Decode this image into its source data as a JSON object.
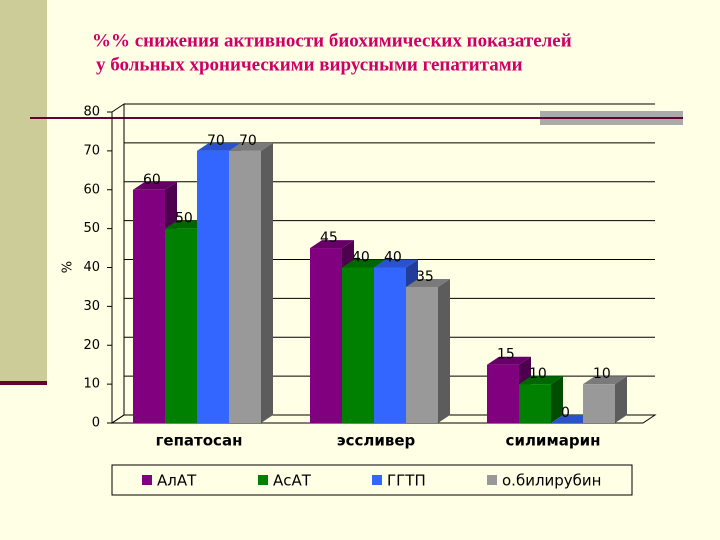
{
  "chart_data": {
    "type": "bar",
    "title": [
      "%% снижения активности биохимических показателей",
      "у больных хроническими вирусными гепатитами"
    ],
    "y_label": "%",
    "categories": [
      "гепатосан",
      "эссливер",
      "силимарин"
    ],
    "series": [
      {
        "name": "АлАТ",
        "color": "#800080",
        "values": [
          60,
          45,
          15
        ]
      },
      {
        "name": "АсАТ",
        "color": "#008000",
        "values": [
          50,
          40,
          10
        ]
      },
      {
        "name": "ГГТП",
        "color": "#3366ff",
        "values": [
          70,
          40,
          0
        ]
      },
      {
        "name": "о.билирубин",
        "color": "#999999",
        "values": [
          70,
          35,
          10
        ]
      }
    ],
    "ylim": [
      0,
      80
    ],
    "yticks": [
      0,
      10,
      20,
      30,
      40,
      50,
      60,
      70,
      80
    ],
    "grid": true,
    "legend": "bottom"
  }
}
